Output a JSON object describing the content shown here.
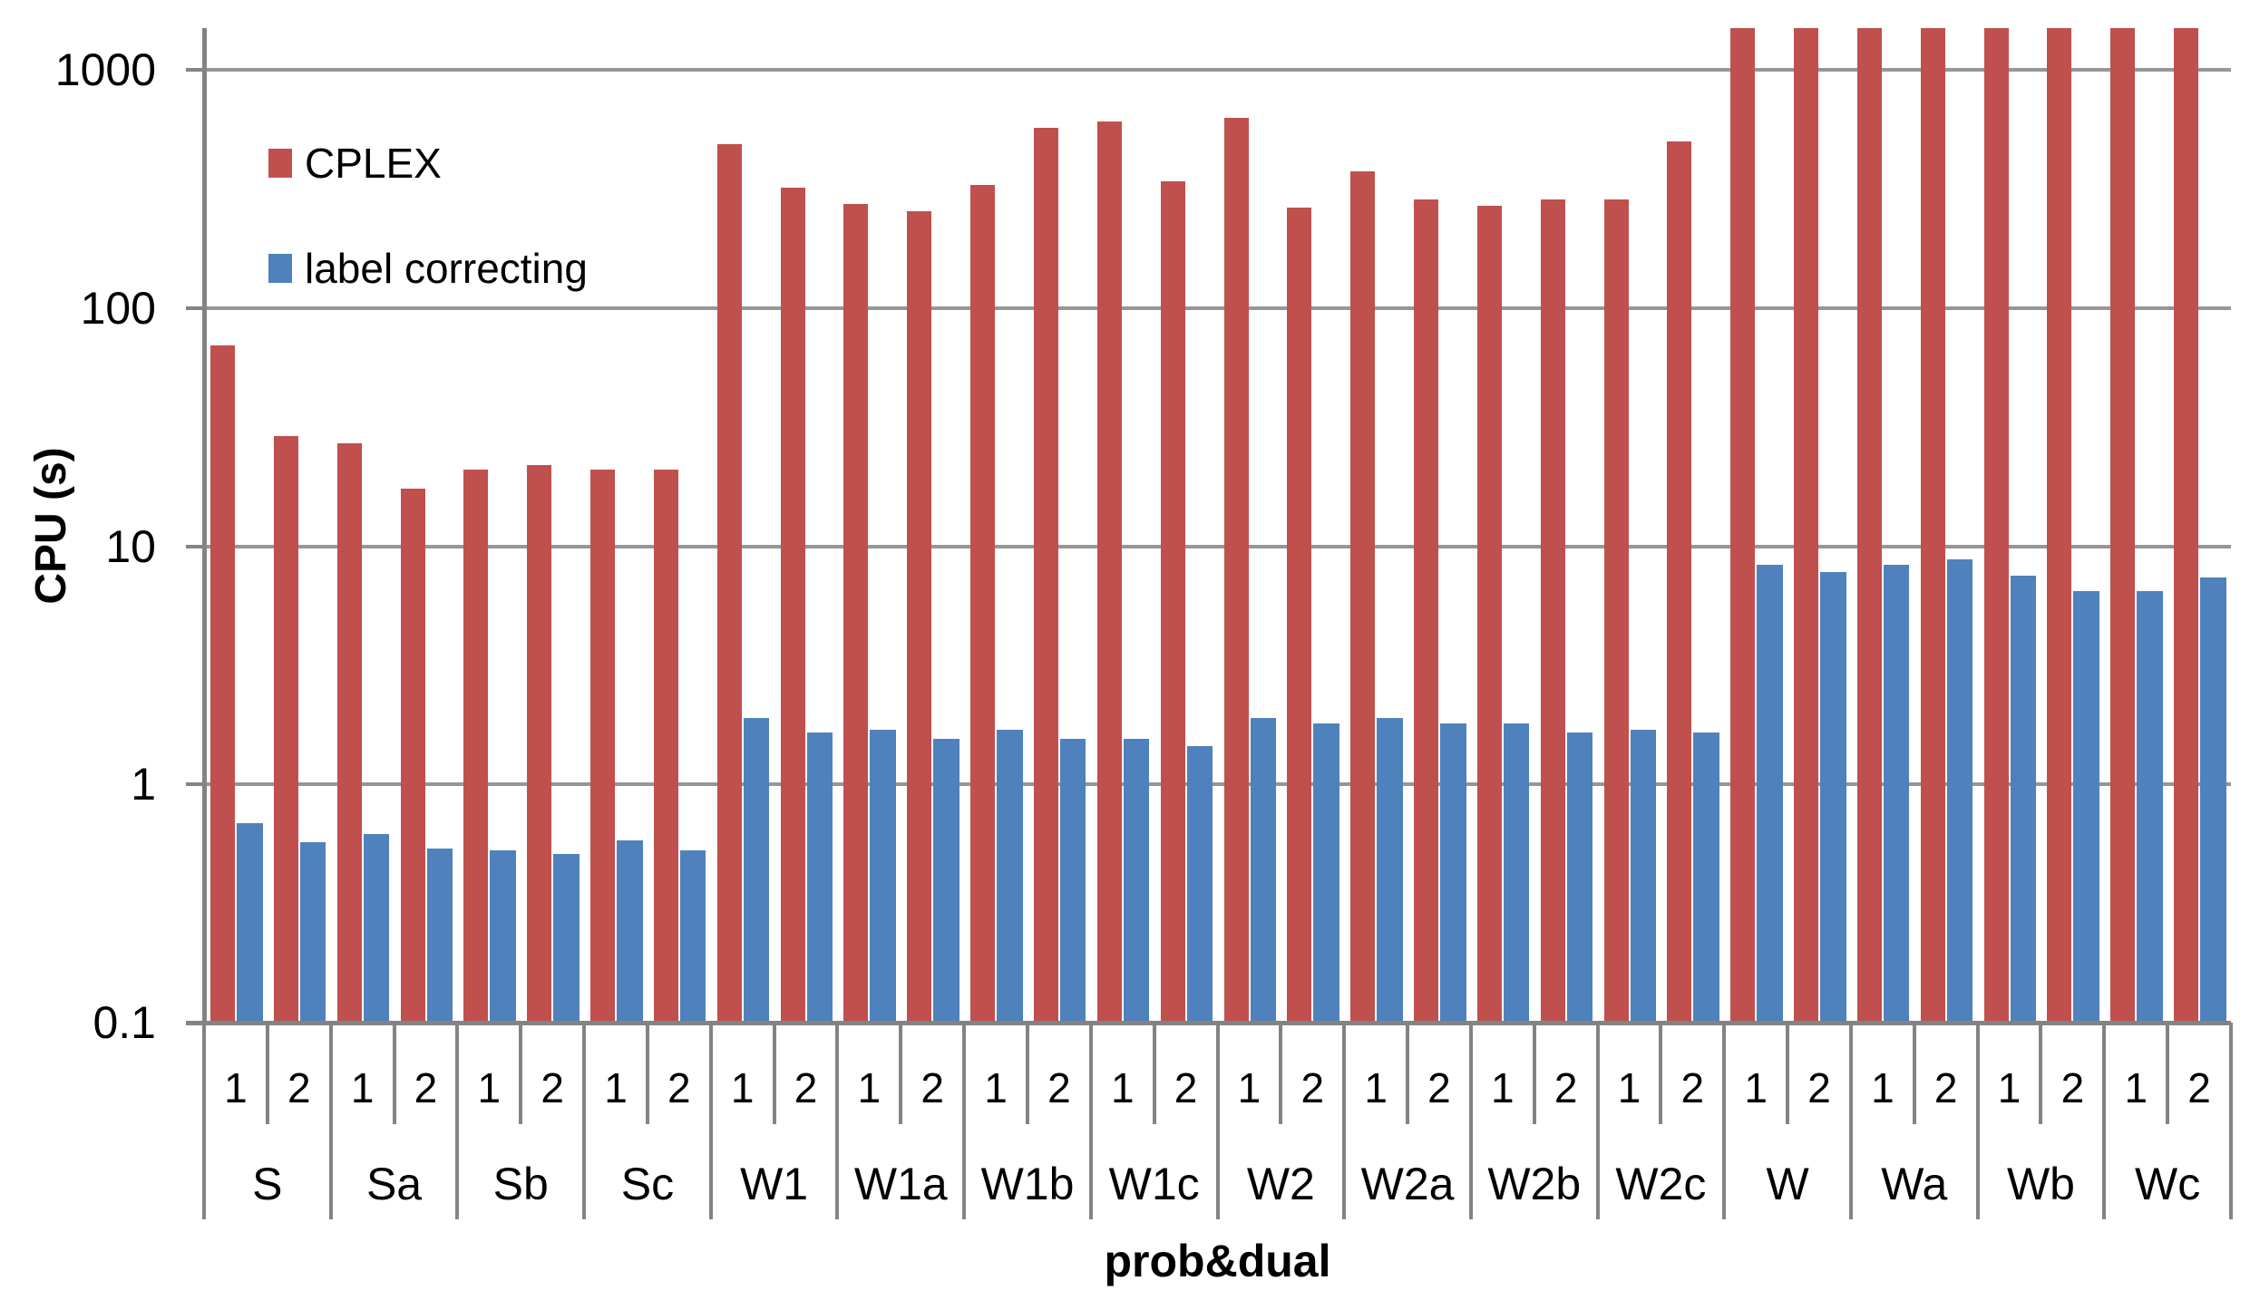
{
  "chart_data": {
    "type": "bar",
    "title": "",
    "xlabel": "prob&dual",
    "ylabel": "CPU (s)",
    "y_scale": "log",
    "ylim": [
      0.1,
      1500
    ],
    "grid": true,
    "legend_position": "top-left-inside",
    "yticks": [
      {
        "value": 0.1,
        "label": "0.1"
      },
      {
        "value": 1,
        "label": "1"
      },
      {
        "value": 10,
        "label": "10"
      },
      {
        "value": 100,
        "label": "100"
      },
      {
        "value": 1000,
        "label": "1000"
      }
    ],
    "categories": [
      "S",
      "Sa",
      "Sb",
      "Sc",
      "W1",
      "W1a",
      "W1b",
      "W1c",
      "W2",
      "W2a",
      "W2b",
      "W2c",
      "W",
      "Wa",
      "Wb",
      "Wc"
    ],
    "sub_categories": [
      "1",
      "2"
    ],
    "series": [
      {
        "name": "CPLEX",
        "color": "#C0504D",
        "values": [
          [
            70,
            29
          ],
          [
            27,
            17.5
          ],
          [
            21,
            22
          ],
          [
            21,
            21
          ],
          [
            490,
            320
          ],
          [
            275,
            255
          ],
          [
            330,
            570
          ],
          [
            610,
            340
          ],
          [
            630,
            265
          ],
          [
            375,
            285
          ],
          [
            270,
            285
          ],
          [
            285,
            500
          ],
          [
            1500,
            1500
          ],
          [
            1500,
            1500
          ],
          [
            1500,
            1500
          ],
          [
            1500,
            1500
          ]
        ],
        "note_clipped_at_ymax": [
          "W-1",
          "W-2",
          "Wa-1",
          "Wa-2",
          "Wb-1",
          "Wb-2",
          "Wc-1",
          "Wc-2"
        ]
      },
      {
        "name": "label correcting",
        "color": "#4F81BD",
        "values": [
          [
            0.69,
            0.57
          ],
          [
            0.62,
            0.54
          ],
          [
            0.53,
            0.51
          ],
          [
            0.58,
            0.53
          ],
          [
            1.9,
            1.65
          ],
          [
            1.7,
            1.55
          ],
          [
            1.7,
            1.55
          ],
          [
            1.55,
            1.45
          ],
          [
            1.9,
            1.8
          ],
          [
            1.9,
            1.8
          ],
          [
            1.8,
            1.65
          ],
          [
            1.7,
            1.65
          ],
          [
            8.4,
            7.8
          ],
          [
            8.4,
            8.8
          ],
          [
            7.5,
            6.5
          ],
          [
            6.5,
            7.4
          ]
        ]
      }
    ]
  },
  "colors": {
    "cplex_red": "#C0504D",
    "label_correcting_blue": "#4F81BD",
    "gridline_gray": "#969696",
    "axis_gray": "#838383",
    "text_black": "#000000",
    "background": "#FFFFFF"
  }
}
